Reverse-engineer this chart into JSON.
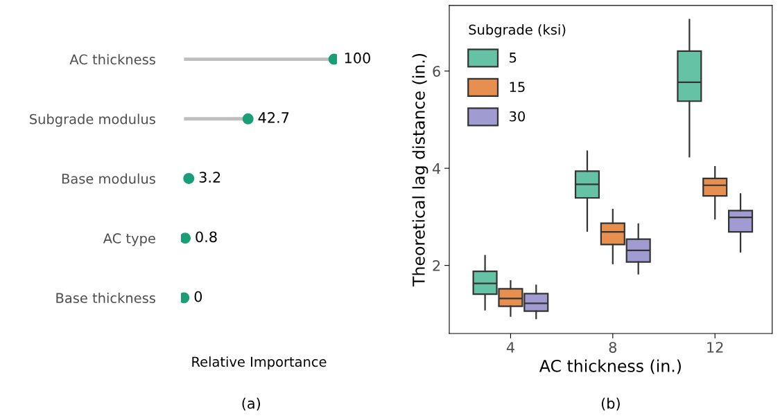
{
  "chart_data": [
    {
      "type": "lollipop",
      "orientation": "horizontal",
      "xlabel": "Relative Importance",
      "categories": [
        "AC thickness",
        "Subgrade modulus",
        "Base modulus",
        "AC type",
        "Base thickness"
      ],
      "series": [
        {
          "color": "#1b9e77",
          "values": [
            100,
            42.7,
            3.2,
            0.8,
            0
          ]
        }
      ],
      "data_labels": true,
      "tick_labels": "y",
      "annotations": [
        "(a)"
      ]
    },
    {
      "type": "box",
      "xlabel": "AC thickness (in.)",
      "ylabel": "Theoretical lag distance (in.)",
      "legend_title": "Subgrade (ksi)",
      "categories": [
        "4",
        "8",
        "12"
      ],
      "ylim": [
        0.6,
        7.35
      ],
      "yticks": [
        2,
        4,
        6
      ],
      "grid": false,
      "legend": "top left",
      "annotations": [
        "(b)"
      ],
      "series": [
        {
          "name": "5",
          "color": "#66c2a5",
          "boxes": [
            {
              "low": 1.09,
              "q1": 1.41,
              "median": 1.63,
              "q3": 1.88,
              "high": 2.2
            },
            {
              "low": 2.71,
              "q1": 3.39,
              "median": 3.67,
              "q3": 3.94,
              "high": 4.35
            },
            {
              "low": 4.24,
              "q1": 5.38,
              "median": 5.77,
              "q3": 6.41,
              "high": 7.06
            }
          ]
        },
        {
          "name": "15",
          "color": "#e78f4e",
          "boxes": [
            {
              "low": 0.96,
              "q1": 1.16,
              "median": 1.32,
              "q3": 1.52,
              "high": 1.68
            },
            {
              "low": 2.04,
              "q1": 2.43,
              "median": 2.69,
              "q3": 2.87,
              "high": 3.15
            },
            {
              "low": 2.96,
              "q1": 3.43,
              "median": 3.65,
              "q3": 3.79,
              "high": 4.03
            }
          ]
        },
        {
          "name": "30",
          "color": "#a09bd0",
          "boxes": [
            {
              "low": 0.91,
              "q1": 1.06,
              "median": 1.22,
              "q3": 1.42,
              "high": 1.59
            },
            {
              "low": 1.83,
              "q1": 2.07,
              "median": 2.31,
              "q3": 2.54,
              "high": 2.85
            },
            {
              "low": 2.28,
              "q1": 2.69,
              "median": 2.99,
              "q3": 3.13,
              "high": 3.47
            }
          ]
        }
      ]
    }
  ]
}
